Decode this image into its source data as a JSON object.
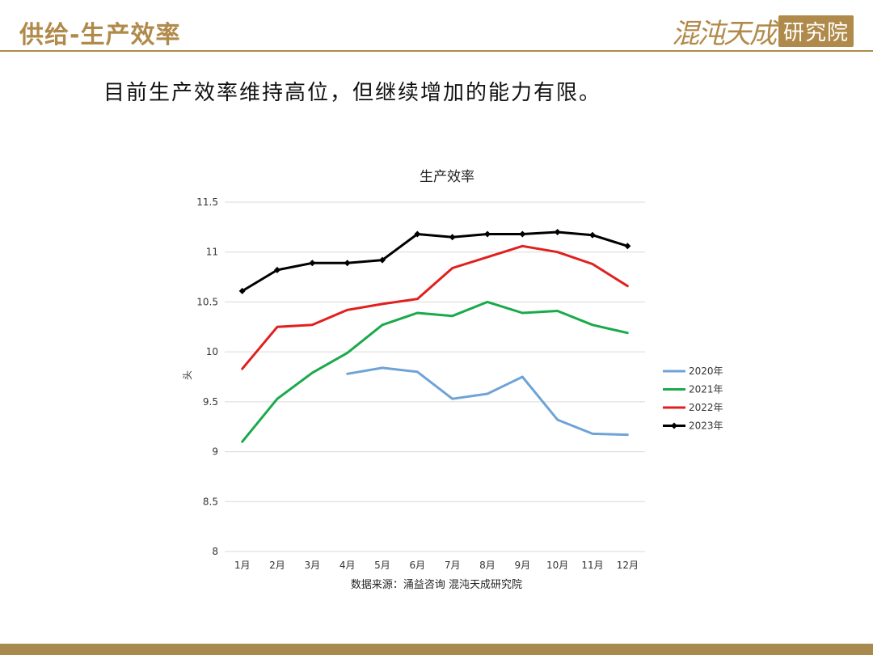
{
  "header": {
    "title": "供给-生产效率",
    "logo_script": "混沌天成",
    "logo_box": "研究院"
  },
  "subtitle": "目前生产效率维持高位，但继续增加的能力有限。",
  "source": "数据来源：涌益咨询 混沌天成研究院",
  "colors": {
    "accent": "#b08a4a",
    "s2020": "#6fa3d6",
    "s2021": "#1aaa4b",
    "s2022": "#e0201e",
    "s2023": "#000000"
  },
  "chart_data": {
    "type": "line",
    "title": "生产效率",
    "xlabel": "",
    "ylabel": "头",
    "categories": [
      "1月",
      "2月",
      "3月",
      "4月",
      "5月",
      "6月",
      "7月",
      "8月",
      "9月",
      "10月",
      "11月",
      "12月"
    ],
    "ylim": [
      8,
      11.5
    ],
    "yticks": [
      "11.5",
      "11",
      "10.5",
      "10",
      "9.5",
      "9",
      "8.5",
      "8"
    ],
    "ytick_values": [
      11.5,
      11,
      10.5,
      10,
      9.5,
      9,
      8.5,
      8
    ],
    "grid": true,
    "legend_position": "right",
    "series": [
      {
        "name": "2020年",
        "color": "#6fa3d6",
        "marker": "none",
        "values": [
          null,
          null,
          null,
          9.78,
          9.84,
          9.8,
          9.53,
          9.58,
          9.75,
          9.32,
          9.18,
          9.17
        ]
      },
      {
        "name": "2021年",
        "color": "#1aaa4b",
        "marker": "none",
        "values": [
          9.1,
          9.53,
          9.79,
          9.99,
          10.27,
          10.39,
          10.36,
          10.5,
          10.39,
          10.41,
          10.27,
          10.19
        ]
      },
      {
        "name": "2022年",
        "color": "#e0201e",
        "marker": "none",
        "values": [
          9.83,
          10.25,
          10.27,
          10.42,
          10.48,
          10.53,
          10.84,
          10.95,
          11.06,
          11.0,
          10.88,
          10.66
        ]
      },
      {
        "name": "2023年",
        "color": "#000000",
        "marker": "diamond",
        "values": [
          10.61,
          10.82,
          10.89,
          10.89,
          10.92,
          11.18,
          11.15,
          11.18,
          11.18,
          11.2,
          11.17,
          11.06
        ]
      }
    ]
  }
}
